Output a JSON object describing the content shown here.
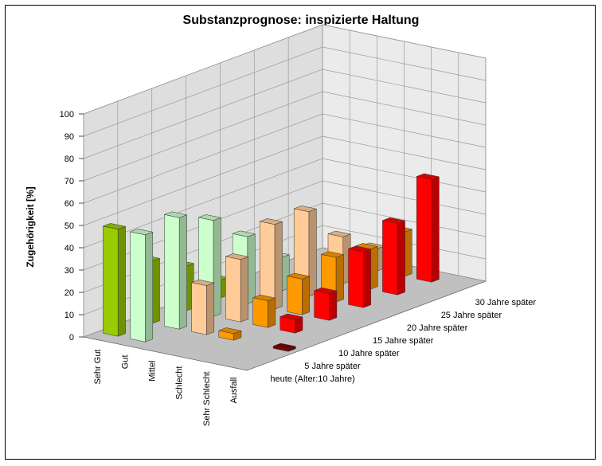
{
  "chart_data": {
    "type": "bar",
    "title": "Substanzprognose: inspizierte Haltung",
    "ylabel": "Zugehörigkeit [%]",
    "ylim": [
      0,
      100
    ],
    "yticks": [
      0,
      10,
      20,
      30,
      40,
      50,
      60,
      70,
      80,
      90,
      100
    ],
    "grid": true,
    "series_axis_labels": [
      "Sehr Gut",
      "Gut",
      "Mittel",
      "Schlecht",
      "Sehr Schlecht",
      "Ausfall"
    ],
    "categories": [
      "heute (Alter:10 Jahre)",
      "5 Jahre später",
      "10 Jahre später",
      "15 Jahre später",
      "20 Jahre später",
      "25 Jahre später",
      "30 Jahre später"
    ],
    "colors": [
      "#99cc00",
      "#ccffcc",
      "#ffcc99",
      "#ff9900",
      "#ff0000",
      "#800000"
    ],
    "series": [
      {
        "name": "Sehr Gut",
        "values": [
          48,
          28,
          20,
          8,
          0,
          0,
          0
        ]
      },
      {
        "name": "Gut",
        "values": [
          48,
          50,
          43,
          30,
          15,
          0,
          0
        ]
      },
      {
        "name": "Mittel",
        "values": [
          0,
          22,
          28,
          38,
          38,
          21,
          10
        ]
      },
      {
        "name": "Schlecht",
        "values": [
          0,
          3,
          12,
          16,
          20,
          18,
          20
        ]
      },
      {
        "name": "Sehr Schlecht",
        "values": [
          0,
          0,
          6,
          12,
          25,
          32,
          46
        ]
      },
      {
        "name": "Ausfall",
        "values": [
          0,
          1,
          0,
          0,
          0,
          0,
          0
        ]
      }
    ]
  }
}
